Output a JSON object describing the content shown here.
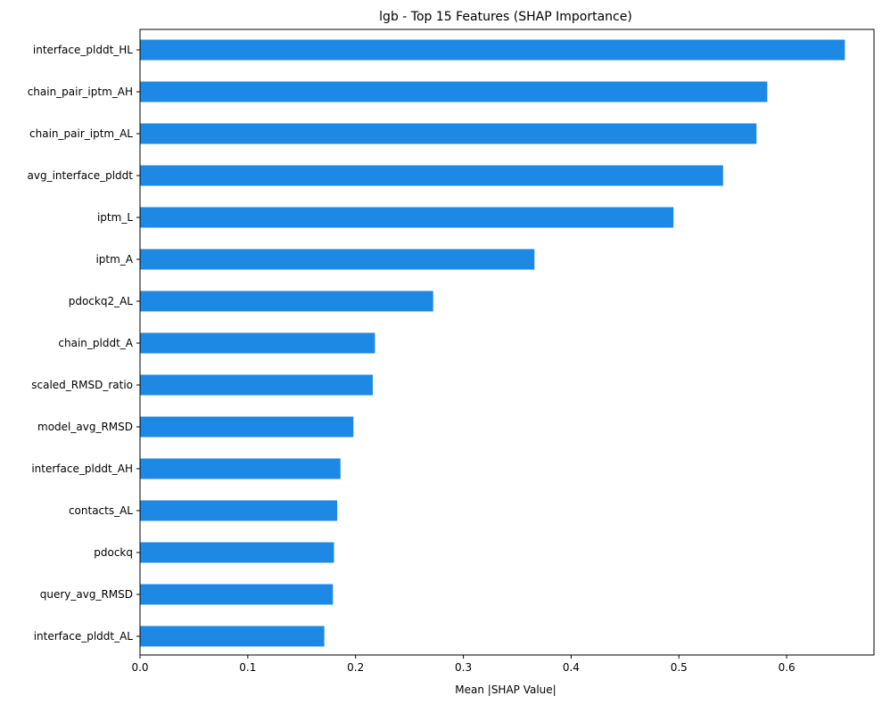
{
  "chart_data": {
    "type": "bar",
    "orientation": "horizontal",
    "title": "lgb - Top 15 Features (SHAP Importance)",
    "xlabel": "Mean |SHAP Value|",
    "ylabel": "",
    "xlim": [
      0,
      0.681
    ],
    "xticks": [
      0.0,
      0.1,
      0.2,
      0.3,
      0.4,
      0.5,
      0.6
    ],
    "xtick_labels": [
      "0.0",
      "0.1",
      "0.2",
      "0.3",
      "0.4",
      "0.5",
      "0.6"
    ],
    "grid": false,
    "bar_color": "#1e88e5",
    "categories": [
      "interface_plddt_HL",
      "chain_pair_iptm_AH",
      "chain_pair_iptm_AL",
      "avg_interface_plddt",
      "iptm_L",
      "iptm_A",
      "pdockq2_AL",
      "chain_plddt_A",
      "scaled_RMSD_ratio",
      "model_avg_RMSD",
      "interface_plddt_AH",
      "contacts_AL",
      "pdockq",
      "query_avg_RMSD",
      "interface_plddt_AL"
    ],
    "values": [
      0.654,
      0.582,
      0.572,
      0.541,
      0.495,
      0.366,
      0.272,
      0.218,
      0.216,
      0.198,
      0.186,
      0.183,
      0.18,
      0.179,
      0.171
    ]
  }
}
